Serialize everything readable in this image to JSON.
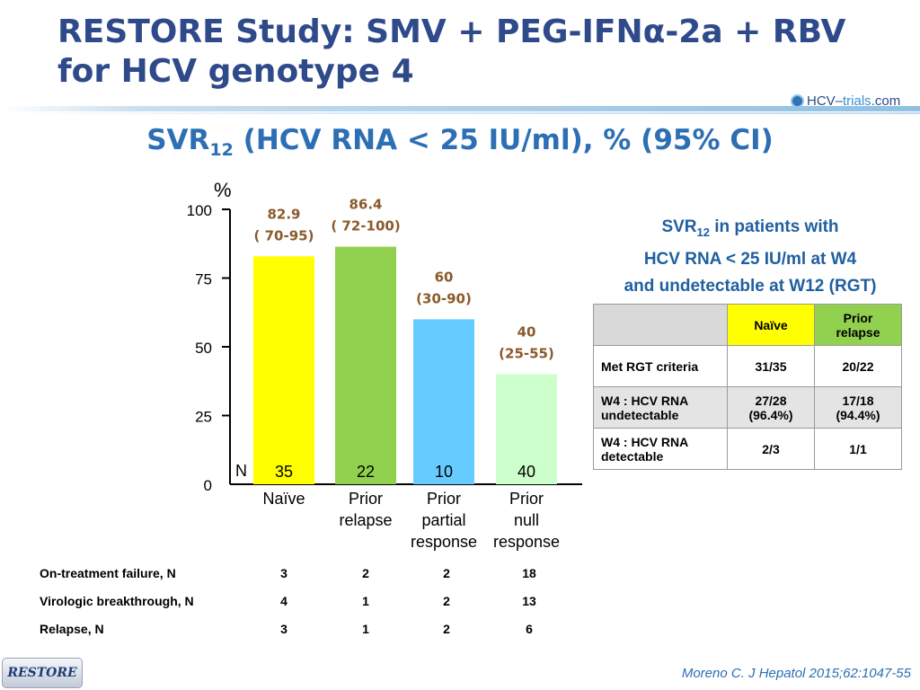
{
  "header": {
    "title_line1": "RESTORE Study: SMV + PEG-IFNα-2a + RBV",
    "title_line2": "for HCV genotype 4",
    "logo_prefix": "HCV–",
    "logo_mid": "trials",
    "logo_suffix": ".com"
  },
  "subtitle": {
    "main": "SVR",
    "sub": "12",
    "rest": " (HCV RNA < 25 IU/ml), % (95% CI)"
  },
  "chart_data": {
    "type": "bar",
    "ylabel": "%",
    "ylim": [
      0,
      100
    ],
    "yticks": [
      0,
      25,
      50,
      75,
      100
    ],
    "n_label": "N",
    "categories": [
      {
        "label": [
          "Naïve"
        ],
        "value": 82.9,
        "ci": "( 70-95)",
        "value_text": "82.9",
        "n": "35",
        "color": "#ffff00"
      },
      {
        "label": [
          "Prior",
          "relapse"
        ],
        "value": 86.4,
        "ci": "( 72-100)",
        "value_text": "86.4",
        "n": "22",
        "color": "#92d050"
      },
      {
        "label": [
          "Prior",
          "partial",
          "response"
        ],
        "value": 60,
        "ci": "(30-90)",
        "value_text": "60",
        "n": "10",
        "color": "#66ccff"
      },
      {
        "label": [
          "Prior",
          "null",
          "response"
        ],
        "value": 40,
        "ci": "(25-55)",
        "value_text": "40",
        "n": "40",
        "color": "#ccffcc"
      }
    ]
  },
  "side_panel": {
    "title_a": "SVR",
    "title_sub": "12",
    "title_b": " in patients with",
    "title_line2": "HCV RNA < 25 IU/ml at W4",
    "title_line3": "and undetectable at W12 (RGT)",
    "head_naive": "Naïve",
    "head_prior": "Prior relapse",
    "rows": [
      {
        "label": "Met RGT criteria",
        "naive": "31/35",
        "prior": "20/22"
      },
      {
        "label": "W4 : HCV RNA undetectable",
        "naive": "27/28 (96.4%)",
        "prior": "17/18 (94.4%)"
      },
      {
        "label": "W4 : HCV RNA detectable",
        "naive": "2/3",
        "prior": "1/1"
      }
    ]
  },
  "bottom_table": {
    "rows": [
      {
        "label": "On-treatment failure, N",
        "values": [
          "3",
          "2",
          "2",
          "18"
        ]
      },
      {
        "label": "Virologic breakthrough, N",
        "values": [
          "4",
          "1",
          "2",
          "13"
        ]
      },
      {
        "label": "Relapse, N",
        "values": [
          "3",
          "1",
          "2",
          "6"
        ]
      }
    ]
  },
  "footer": {
    "button_label": "RESTORE",
    "citation": "Moreno C. J Hepatol 2015;62:1047-55"
  }
}
